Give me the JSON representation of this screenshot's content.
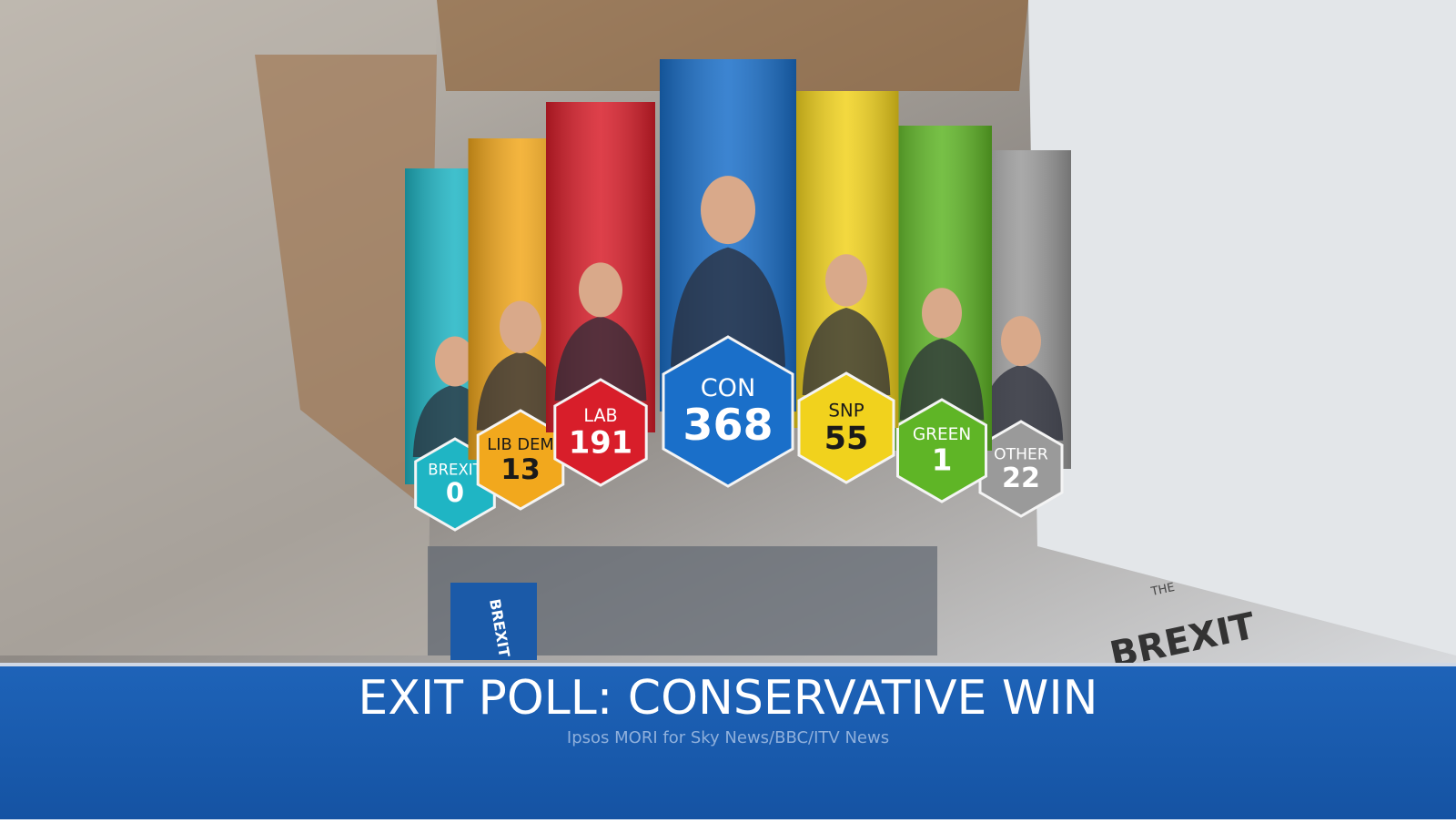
{
  "parties": [
    {
      "name": "BREXIT",
      "seats": 0,
      "color": "#1fb5c4",
      "text_color": "#ffffff"
    },
    {
      "name": "LIB DEM",
      "seats": 13,
      "color": "#f2a81d",
      "text_color": "#1a1a1a"
    },
    {
      "name": "LAB",
      "seats": 191,
      "color": "#d81e2a",
      "text_color": "#ffffff"
    },
    {
      "name": "CON",
      "seats": 368,
      "color": "#1a6fc9",
      "text_color": "#ffffff"
    },
    {
      "name": "SNP",
      "seats": 55,
      "color": "#f1d21d",
      "text_color": "#1a1a1a"
    },
    {
      "name": "GREEN",
      "seats": 1,
      "color": "#5fb526",
      "text_color": "#ffffff"
    },
    {
      "name": "OTHER",
      "seats": 22,
      "color": "#9a9a9a",
      "text_color": "#ffffff"
    }
  ],
  "banner": {
    "title": "EXIT POLL: CONSERVATIVE WIN",
    "subtitle": "Ipsos MORI for Sky News/BBC/ITV News"
  },
  "scene": {
    "signs": [
      "BREXIT",
      "THE",
      "BREXIT"
    ]
  }
}
